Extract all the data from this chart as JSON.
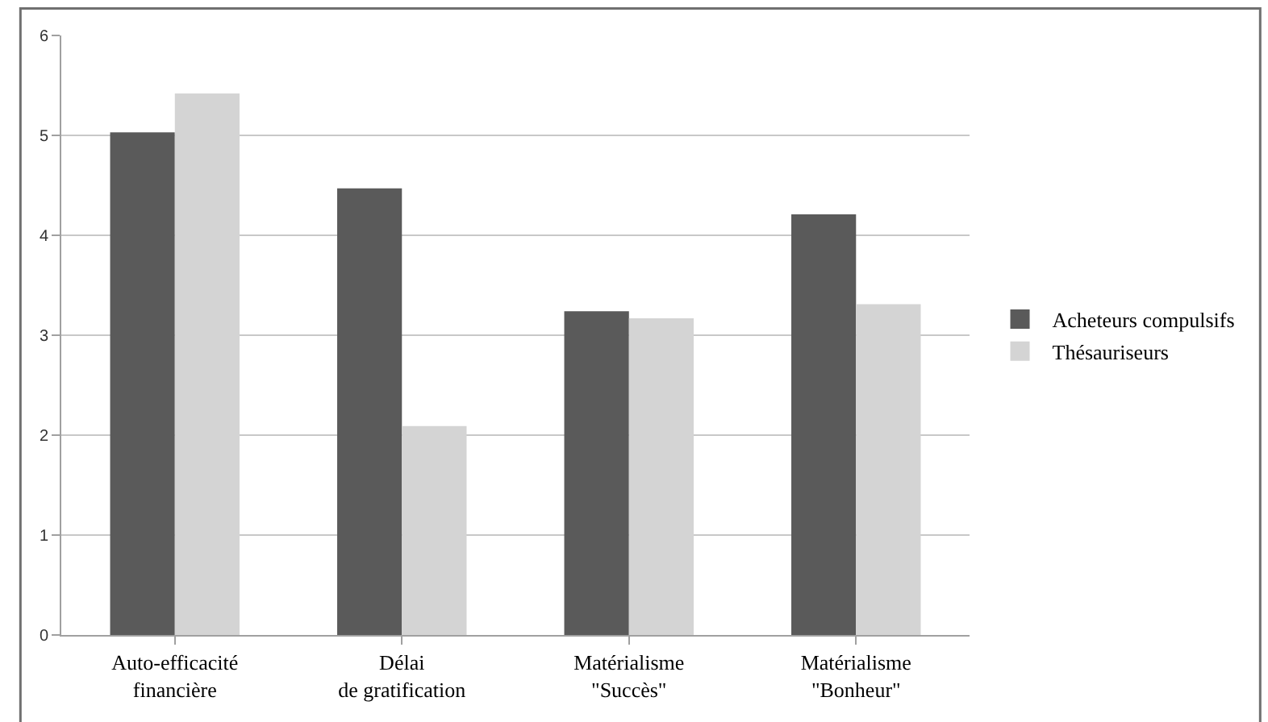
{
  "chart_data": {
    "type": "bar",
    "categories": [
      "Auto-efficacité financière",
      "Délai de gratification",
      "Matérialisme \"Succès\"",
      "Matérialisme \"Bonheur\""
    ],
    "series": [
      {
        "name": "Acheteurs compulsifs",
        "color": "#5a5a5a",
        "values": [
          5.03,
          4.47,
          3.24,
          4.21
        ]
      },
      {
        "name": "Thésauriseurs",
        "color": "#d4d4d4",
        "values": [
          5.42,
          2.09,
          3.17,
          3.31
        ]
      }
    ],
    "ylim": [
      0,
      6
    ],
    "yticks": [
      0,
      1,
      2,
      3,
      4,
      5,
      6
    ],
    "grid": "y",
    "legend": "right"
  }
}
